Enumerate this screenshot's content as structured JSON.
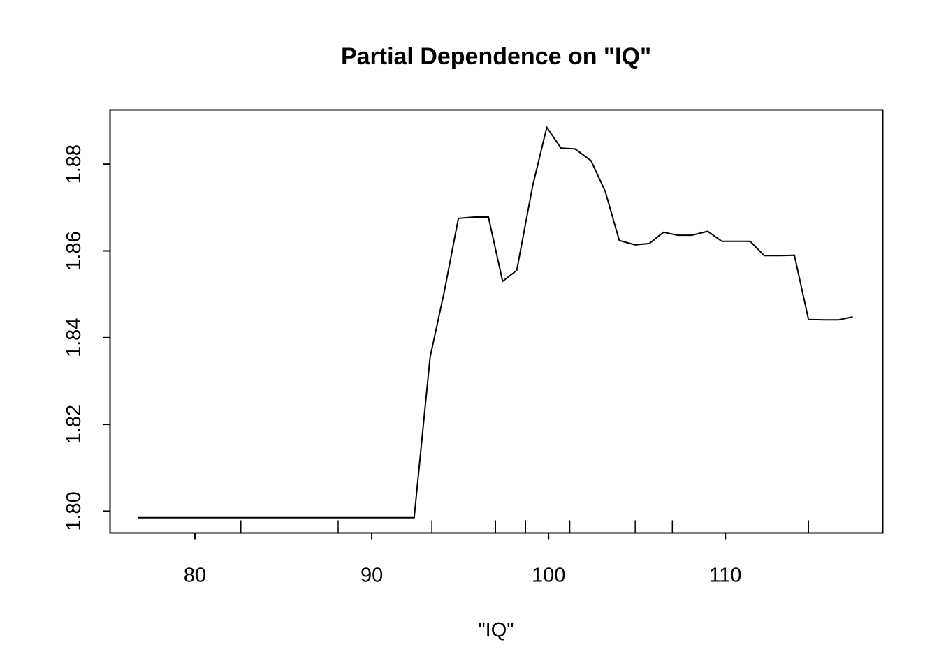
{
  "chart_data": {
    "type": "line",
    "title": "Partial Dependence on \"IQ\"",
    "xlabel": "\"IQ\"",
    "ylabel": "",
    "xlim": [
      75.2,
      118.9
    ],
    "ylim": [
      1.795,
      1.8925
    ],
    "xticks": [
      80,
      90,
      100,
      110
    ],
    "yticks": [
      1.8,
      1.82,
      1.84,
      1.86,
      1.88
    ],
    "xtick_labels": [
      "80",
      "90",
      "100",
      "110"
    ],
    "ytick_labels": [
      "1.80",
      "1.82",
      "1.84",
      "1.86",
      "1.88"
    ],
    "grid": false,
    "series": [
      {
        "x": [
          76.8,
          92.4,
          93.3,
          94.1,
          94.9,
          95.8,
          96.6,
          97.4,
          98.2,
          99.1,
          99.9,
          100.7,
          101.5,
          102.4,
          103.2,
          104.0,
          104.9,
          105.7,
          106.5,
          107.3,
          108.1,
          109.0,
          109.8,
          110.6,
          111.4,
          112.2,
          113.1,
          113.9,
          114.7,
          115.6,
          116.4,
          117.2
        ],
        "y": [
          1.7985,
          1.7985,
          1.8355,
          1.8505,
          1.8675,
          1.8678,
          1.8678,
          1.853,
          1.8555,
          1.875,
          1.8885,
          1.8837,
          1.8835,
          1.8808,
          1.8738,
          1.8624,
          1.8614,
          1.8617,
          1.8643,
          1.8636,
          1.8636,
          1.8645,
          1.8622,
          1.8622,
          1.8622,
          1.8589,
          1.8589,
          1.859,
          1.8442,
          1.8441,
          1.8441,
          1.8448
        ]
      }
    ],
    "rug": [
      82.6,
      88.1,
      93.4,
      97.0,
      98.7,
      101.2,
      104.9,
      107.0,
      114.7
    ]
  }
}
